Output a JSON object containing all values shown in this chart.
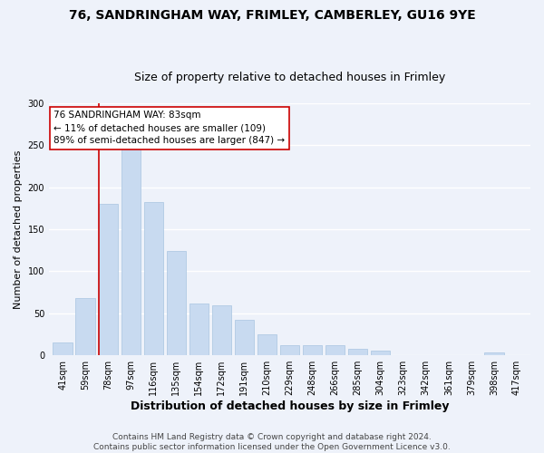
{
  "title1": "76, SANDRINGHAM WAY, FRIMLEY, CAMBERLEY, GU16 9YE",
  "title2": "Size of property relative to detached houses in Frimley",
  "xlabel": "Distribution of detached houses by size in Frimley",
  "ylabel": "Number of detached properties",
  "categories": [
    "41sqm",
    "59sqm",
    "78sqm",
    "97sqm",
    "116sqm",
    "135sqm",
    "154sqm",
    "172sqm",
    "191sqm",
    "210sqm",
    "229sqm",
    "248sqm",
    "266sqm",
    "285sqm",
    "304sqm",
    "323sqm",
    "342sqm",
    "361sqm",
    "379sqm",
    "398sqm",
    "417sqm"
  ],
  "values": [
    15,
    68,
    180,
    247,
    182,
    124,
    62,
    60,
    42,
    25,
    12,
    12,
    12,
    8,
    6,
    0,
    0,
    0,
    0,
    3,
    0
  ],
  "bar_color": "#c8daf0",
  "bar_edge_color": "#a8c4e0",
  "ref_line_index": 2,
  "ref_line_color": "#cc0000",
  "annotation_line1": "76 SANDRINGHAM WAY: 83sqm",
  "annotation_line2": "← 11% of detached houses are smaller (109)",
  "annotation_line3": "89% of semi-detached houses are larger (847) →",
  "annotation_box_color": "#ffffff",
  "annotation_box_edge": "#cc0000",
  "ylim": [
    0,
    300
  ],
  "yticks": [
    0,
    50,
    100,
    150,
    200,
    250,
    300
  ],
  "footer_line1": "Contains HM Land Registry data © Crown copyright and database right 2024.",
  "footer_line2": "Contains public sector information licensed under the Open Government Licence v3.0.",
  "bg_color": "#eef2fa",
  "plot_bg_color": "#eef2fa",
  "grid_color": "#ffffff",
  "title1_fontsize": 10,
  "title2_fontsize": 9,
  "xlabel_fontsize": 9,
  "ylabel_fontsize": 8,
  "tick_fontsize": 7,
  "annotation_fontsize": 7.5,
  "footer_fontsize": 6.5
}
